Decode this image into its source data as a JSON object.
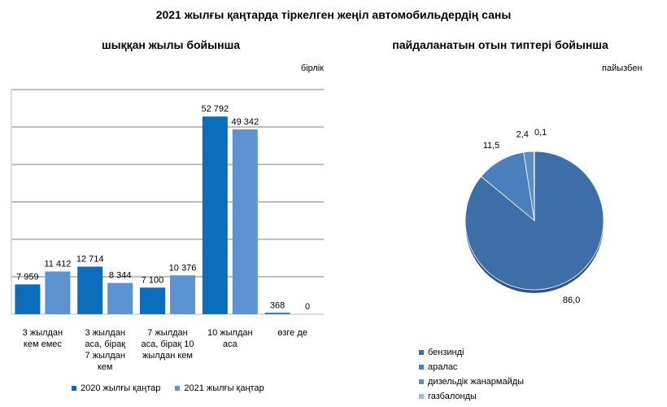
{
  "title": "2021 жылғы қаңтарда тіркелген жеңіл автомобильдердің саны",
  "colors": {
    "series_2020": "#0a6ebd",
    "series_2021": "#5b93d3",
    "grid": "#000000",
    "pie_petrol": "#3d6ea8",
    "pie_hybrid": "#4a80bb",
    "pie_diesel": "#5b8dc8",
    "pie_gas": "#9cb8dd"
  },
  "chart_data": [
    {
      "type": "bar",
      "title": "шыққан жылы бойынша",
      "unit": "бірлік",
      "categories": [
        [
          "3 жылдан",
          "кем емес"
        ],
        [
          "3 жылдан",
          "аса, бірақ",
          "7 жылдан",
          "кем"
        ],
        [
          "7 жылдан",
          "аса, бірақ 10",
          "жылдан кем"
        ],
        [
          "10 жылдан",
          "аса"
        ],
        [
          "өзге де"
        ]
      ],
      "series": [
        {
          "name": "2020 жылғы қаңтар",
          "values": [
            7959,
            12714,
            7100,
            52792,
            368
          ],
          "labels": [
            "7 959",
            "12 714",
            "7 100",
            "52 792",
            "368"
          ]
        },
        {
          "name": "2021 жылғы қаңтар",
          "values": [
            11412,
            8344,
            10376,
            49342,
            0
          ],
          "labels": [
            "11 412",
            "8 344",
            "10 376",
            "49 342",
            "0"
          ]
        }
      ],
      "ylim": [
        0,
        60000
      ],
      "grid": true,
      "legend": "bottom"
    },
    {
      "type": "pie",
      "title": "пайдаланатын отын типтері бойынша",
      "unit": "пайызбен",
      "slices": [
        {
          "name": "бензинді",
          "value": 86.0,
          "label": "86,0"
        },
        {
          "name": "аралас",
          "value": 11.5,
          "label": "11,5"
        },
        {
          "name": "дизельдік жанармайды",
          "value": 2.4,
          "label": "2,4"
        },
        {
          "name": "газбалонды",
          "value": 0.1,
          "label": "0,1"
        }
      ],
      "legend": "bottom-left"
    }
  ]
}
